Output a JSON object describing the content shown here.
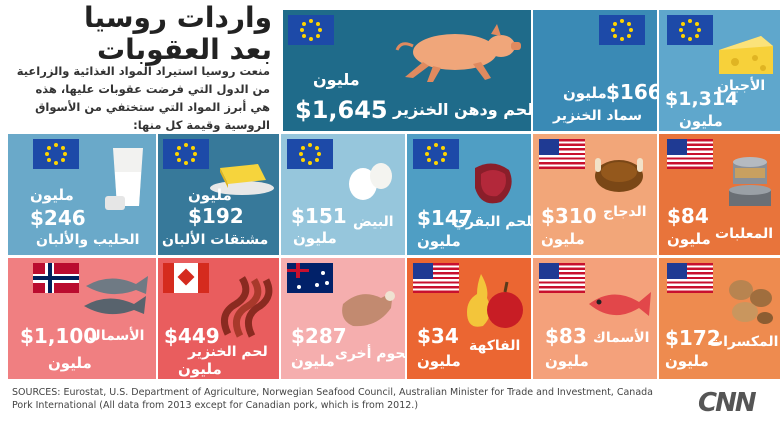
{
  "header": {
    "title_line1": "واردات روسيا",
    "title_line2": "بعد العقوبات",
    "intro": "منعت روسيا استيراد المواد الغذائية والزراعية من الدول التي فرضت عقوبات عليها، هذه هي أبرز المواد التي ستختفي من الأسواق الروسية وقيمة كل منها:"
  },
  "tiles": {
    "pork": {
      "value": "$1,645",
      "unit": "مليون",
      "label": "لحم ودهن الخنزير",
      "bg": "#1f6b8a"
    },
    "fertilizer": {
      "value": "$166",
      "unit": "مليون",
      "label": "سماد الخنزير",
      "bg": "#3a8ab5"
    },
    "cheese": {
      "value": "$1,314",
      "unit": "مليون",
      "label": "الأجبان",
      "bg": "#5fa7cc"
    },
    "milk": {
      "value": "$246",
      "unit": "مليون",
      "label": "الحليب والألبان",
      "bg": "#6aa9c9"
    },
    "dairy": {
      "value": "$192",
      "unit": "مليون",
      "label": "مشتقات الألبان",
      "bg": "#37799a"
    },
    "eggs": {
      "value": "$151",
      "unit": "مليون",
      "label": "البيض",
      "bg": "#96c6dc"
    },
    "beef": {
      "value": "$147",
      "unit": "مليون",
      "label": "اللحم البقري",
      "bg": "#4f9ec4"
    },
    "chicken": {
      "value": "$310",
      "unit": "مليون",
      "label": "الدجاج",
      "bg": "#f2a679"
    },
    "canned": {
      "value": "$84",
      "unit": "مليون",
      "label": "المعلبات",
      "bg": "#e8743b"
    },
    "fish_no": {
      "value": "$1,100",
      "unit": "مليون",
      "label": "الأسماك",
      "bg": "#f07f81"
    },
    "bacon": {
      "value": "$449",
      "unit": "مليون",
      "label": "لحم الخنزير",
      "bg": "#e95d5e"
    },
    "meat": {
      "value": "$287",
      "unit": "مليون",
      "label": "لحوم أخرى",
      "bg": "#f5aeae"
    },
    "fruit": {
      "value": "$34",
      "unit": "مليون",
      "label": "الفاكهة",
      "bg": "#eb6632"
    },
    "fish_us": {
      "value": "$83",
      "unit": "مليون",
      "label": "الأسماك",
      "bg": "#f4a17b"
    },
    "nuts": {
      "value": "$172",
      "unit": "مليون",
      "label": "المكسرات",
      "bg": "#ee8b4f"
    }
  },
  "footer": {
    "sources": "SOURCES:  Eurostat, U.S. Department of Agriculture, Norwegian Seafood Council, Australian Minister for Trade and Investment, Canada Pork International (All data from 2013 except for Canadian pork, which is from 2012.)",
    "logo": "CNN"
  }
}
